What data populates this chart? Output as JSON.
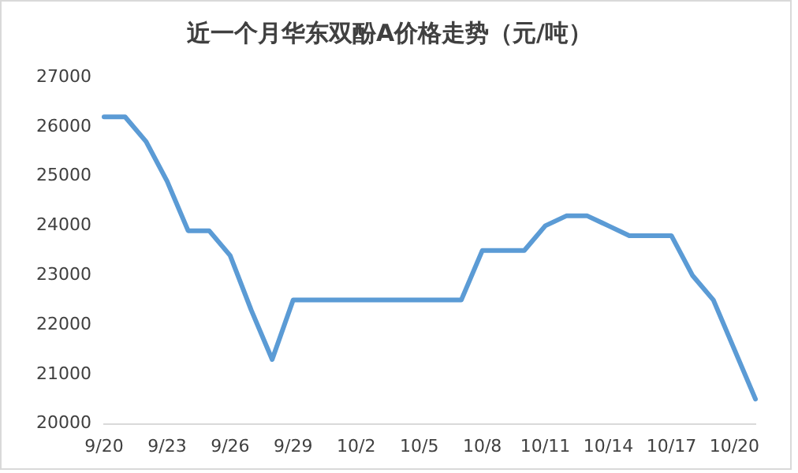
{
  "chart_data": {
    "type": "line",
    "title": "近一个月华东双酚A价格走势（元/吨）",
    "categories": [
      "9/20",
      null,
      null,
      "9/23",
      null,
      null,
      "9/26",
      null,
      null,
      "9/29",
      null,
      null,
      "10/2",
      null,
      null,
      "10/5",
      null,
      null,
      "10/8",
      null,
      null,
      "10/11",
      null,
      null,
      "10/14",
      null,
      null,
      "10/17",
      null,
      null,
      "10/20",
      null
    ],
    "series": [
      {
        "color": "#5b9bd5",
        "values": [
          26200,
          26200,
          25700,
          24900,
          23900,
          23900,
          23400,
          22300,
          21300,
          22500,
          22500,
          22500,
          22500,
          22500,
          22500,
          22500,
          22500,
          22500,
          23500,
          23500,
          23500,
          24000,
          24200,
          24200,
          24000,
          23800,
          23800,
          23800,
          23000,
          22500,
          21500,
          20500
        ]
      }
    ],
    "ylim": [
      20000,
      27000
    ],
    "yticks": [
      20000,
      21000,
      22000,
      23000,
      24000,
      25000,
      26000,
      27000
    ],
    "grid": false,
    "legend": false,
    "marker": "none",
    "line_style": "solid"
  }
}
